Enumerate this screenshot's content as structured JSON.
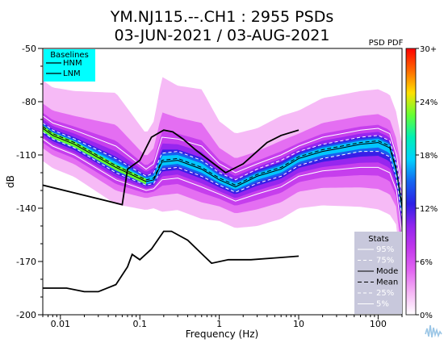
{
  "chart_data": {
    "type": "heatmap",
    "title": "YM.NJ115.--.CH1 : 2955 PSDs",
    "subtitle": "03-JUN-2021 / 03-AUG-2021",
    "xlabel": "Frequency (Hz)",
    "ylabel": "dB",
    "x_scale": "log",
    "xlim": [
      0.006,
      200
    ],
    "ylim": [
      -200,
      -50
    ],
    "x_ticks": [
      {
        "value": 0.01,
        "label": "0.01"
      },
      {
        "value": 0.1,
        "label": "0.1"
      },
      {
        "value": 1,
        "label": "1"
      },
      {
        "value": 10,
        "label": "10"
      },
      {
        "value": 100,
        "label": "100"
      }
    ],
    "y_ticks": [
      {
        "value": -50,
        "label": "-50"
      },
      {
        "value": -80,
        "label": "-80"
      },
      {
        "value": -110,
        "label": "-110"
      },
      {
        "value": -140,
        "label": "-140"
      },
      {
        "value": -170,
        "label": "-170"
      },
      {
        "value": -200,
        "label": "-200"
      }
    ],
    "grid": false,
    "colorbar": {
      "title": "PSD PDF",
      "ticks": [
        {
          "value": 0,
          "label": "0%"
        },
        {
          "value": 6,
          "label": "6%"
        },
        {
          "value": 12,
          "label": "12%"
        },
        {
          "value": 18,
          "label": "18%"
        },
        {
          "value": 24,
          "label": "24%"
        },
        {
          "value": 30,
          "label": "30+"
        }
      ]
    },
    "baselines": {
      "title": "Baselines",
      "legend_position": "top-left",
      "series": [
        {
          "name": "HNM",
          "x": [
            0.006,
            0.06,
            0.07,
            0.1,
            0.14,
            0.2,
            0.26,
            0.35,
            0.5,
            1.2,
            2,
            3,
            4,
            6,
            10
          ],
          "y": [
            -127,
            -138,
            -118,
            -113,
            -100,
            -96,
            -97,
            -101,
            -107,
            -120,
            -115,
            -108,
            -103,
            -99,
            -96
          ]
        },
        {
          "name": "LNM",
          "x": [
            0.006,
            0.012,
            0.02,
            0.03,
            0.05,
            0.07,
            0.08,
            0.1,
            0.14,
            0.2,
            0.25,
            0.4,
            0.8,
            1.3,
            2.5,
            5,
            10
          ],
          "y": [
            -185,
            -185,
            -187,
            -187,
            -183,
            -173,
            -166,
            -169,
            -163,
            -153,
            -153,
            -158,
            -171,
            -169,
            -169,
            -168,
            -167
          ]
        }
      ]
    },
    "stats": {
      "title": "Stats",
      "legend_position": "bottom-right",
      "series": [
        {
          "name": "95%",
          "x": [
            0.006,
            0.008,
            0.015,
            0.05,
            0.12,
            0.15,
            0.19,
            0.3,
            0.6,
            1,
            1.6,
            3,
            6,
            10,
            20,
            35,
            60,
            100,
            140,
            170,
            200
          ],
          "y": [
            -88,
            -92,
            -96,
            -105,
            -118,
            -115,
            -100,
            -101,
            -105,
            -115,
            -120,
            -115,
            -110,
            -105,
            -100,
            -98,
            -96,
            -95,
            -98,
            -110,
            -130
          ]
        },
        {
          "name": "75%",
          "x": [
            0.006,
            0.008,
            0.015,
            0.05,
            0.12,
            0.15,
            0.19,
            0.3,
            0.6,
            1,
            1.6,
            3,
            6,
            10,
            20,
            35,
            60,
            100,
            140,
            170,
            200
          ],
          "y": [
            -92,
            -96,
            -101,
            -112,
            -122,
            -120,
            -109,
            -108,
            -113,
            -120,
            -124,
            -118,
            -113,
            -108,
            -104,
            -102,
            -100,
            -99,
            -102,
            -115,
            -135
          ]
        },
        {
          "name": "Mode",
          "x": [
            0.006,
            0.008,
            0.015,
            0.05,
            0.12,
            0.15,
            0.19,
            0.3,
            0.6,
            1,
            1.6,
            3,
            6,
            10,
            20,
            35,
            60,
            100,
            140,
            170,
            200
          ],
          "y": [
            -95,
            -99,
            -104,
            -117,
            -125,
            -124,
            -114,
            -113,
            -118,
            -124,
            -128,
            -122,
            -118,
            -112,
            -108,
            -106,
            -104,
            -103,
            -106,
            -119,
            -140
          ]
        },
        {
          "name": "Mean",
          "x": [
            0.006,
            0.008,
            0.015,
            0.05,
            0.12,
            0.15,
            0.19,
            0.3,
            0.6,
            1,
            1.6,
            3,
            6,
            10,
            20,
            35,
            60,
            100,
            140,
            170,
            200
          ],
          "y": [
            -94,
            -98,
            -103,
            -116,
            -124,
            -123,
            -113,
            -112,
            -117,
            -123,
            -127,
            -121,
            -117,
            -111,
            -107,
            -105,
            -103,
            -102,
            -105,
            -118,
            -138
          ]
        },
        {
          "name": "25%",
          "x": [
            0.006,
            0.008,
            0.015,
            0.05,
            0.12,
            0.15,
            0.19,
            0.3,
            0.6,
            1,
            1.6,
            3,
            6,
            10,
            20,
            35,
            60,
            100,
            140,
            170,
            200
          ],
          "y": [
            -97,
            -101,
            -106,
            -120,
            -127,
            -126,
            -118,
            -117,
            -122,
            -127,
            -131,
            -126,
            -122,
            -116,
            -112,
            -110,
            -108,
            -108,
            -111,
            -123,
            -145
          ]
        },
        {
          "name": "5%",
          "x": [
            0.006,
            0.008,
            0.015,
            0.05,
            0.12,
            0.15,
            0.19,
            0.3,
            0.6,
            1,
            1.6,
            3,
            6,
            10,
            20,
            35,
            60,
            100,
            140,
            170,
            200
          ],
          "y": [
            -101,
            -105,
            -110,
            -124,
            -130,
            -129,
            -124,
            -123,
            -128,
            -132,
            -136,
            -132,
            -128,
            -122,
            -119,
            -118,
            -117,
            -117,
            -120,
            -130,
            -155
          ]
        }
      ]
    },
    "colors": {
      "accent": "#00ffff",
      "legend_box_stats": "#c8c8dc",
      "mode_line": "#000000",
      "percentile_line": "#ffffff",
      "colormap": [
        "#ffffff",
        "#f5b6f5",
        "#e266f2",
        "#c238ec",
        "#9124ee",
        "#2d1fe6",
        "#1565f0",
        "#00d2ff",
        "#00f0b4",
        "#66ff33",
        "#ffe000",
        "#ff6a00",
        "#ff0000"
      ]
    }
  }
}
